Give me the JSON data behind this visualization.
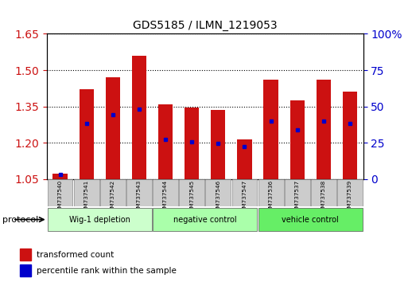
{
  "title": "GDS5185 / ILMN_1219053",
  "samples": [
    "GSM737540",
    "GSM737541",
    "GSM737542",
    "GSM737543",
    "GSM737544",
    "GSM737545",
    "GSM737546",
    "GSM737547",
    "GSM737536",
    "GSM737537",
    "GSM737538",
    "GSM737539"
  ],
  "bar_tops": [
    1.073,
    1.42,
    1.47,
    1.56,
    1.36,
    1.345,
    1.335,
    1.215,
    1.46,
    1.375,
    1.46,
    1.41
  ],
  "bar_bottoms": [
    1.05,
    1.05,
    1.05,
    1.05,
    1.05,
    1.05,
    1.05,
    1.05,
    1.05,
    1.05,
    1.05,
    1.05
  ],
  "blue_markers": [
    1.068,
    1.28,
    1.315,
    1.34,
    1.215,
    1.205,
    1.198,
    1.185,
    1.29,
    1.255,
    1.29,
    1.28
  ],
  "groups": [
    {
      "label": "Wig-1 depletion",
      "start": 0,
      "end": 3
    },
    {
      "label": "negative control",
      "start": 4,
      "end": 7
    },
    {
      "label": "vehicle control",
      "start": 8,
      "end": 11
    }
  ],
  "group_colors": [
    "#ccffcc",
    "#aaffaa",
    "#66ee66"
  ],
  "ylim_left": [
    1.05,
    1.65
  ],
  "ylim_right": [
    0,
    100
  ],
  "yticks_left": [
    1.05,
    1.2,
    1.35,
    1.5,
    1.65
  ],
  "yticks_right": [
    0,
    25,
    50,
    75,
    100
  ],
  "bar_color": "#cc1111",
  "blue_color": "#0000cc",
  "background_color": "#ffffff",
  "protocol_label": "protocol",
  "legend_red": "transformed count",
  "legend_blue": "percentile rank within the sample",
  "tick_label_color_left": "#cc1111",
  "tick_label_color_right": "#0000cc"
}
